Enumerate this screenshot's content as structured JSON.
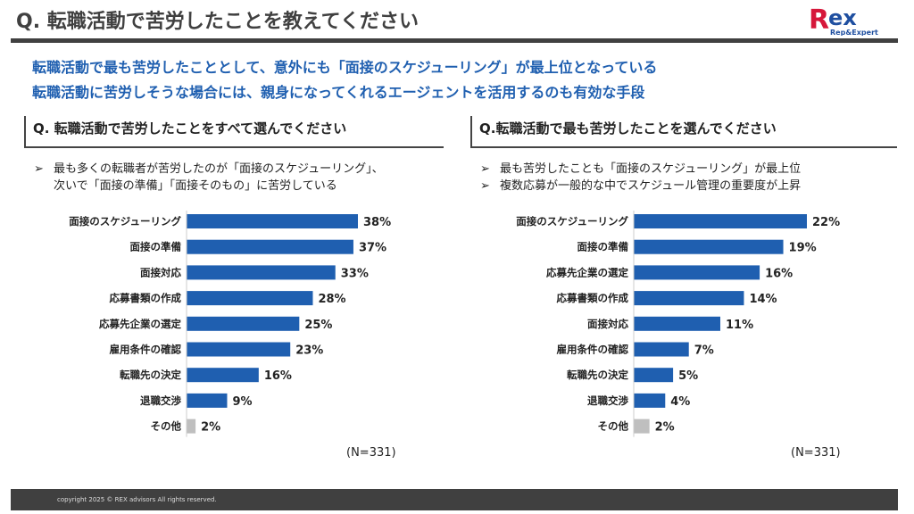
{
  "header": {
    "title": "Q. 転職活動で苦労したことを教えてください",
    "logo_text": "Rex",
    "logo_sub": "Rep&Expert"
  },
  "subtitles": [
    "転職活動で最も苦労したこととして、意外にも「面接のスケジューリング」が最上位となっている",
    "転職活動に苦労しそうな場合には、親身になってくれるエージェントを活用するのも有効な手段"
  ],
  "left": {
    "question": "Q. 転職活動で苦労したことをすべて選んでください",
    "bullets": [
      [
        "最も多くの転職者が苦労したのが「面接のスケジューリング」、",
        "次いで「面接の準備」「面接そのもの」に苦労している"
      ]
    ],
    "n": "(N=331)"
  },
  "right": {
    "question": "Q.転職活動で最も苦労したことを選んでください",
    "bullets": [
      [
        "最も苦労したことも「面接のスケジューリング」が最上位"
      ],
      [
        "複数応募が一般的な中でスケジュール管理の重要度が上昇"
      ]
    ],
    "n": "(N=331)"
  },
  "bullet_glyph": "➢",
  "colors": {
    "bar": "#1f5fb0",
    "other": "#bfbfbf"
  },
  "chart_data": [
    {
      "type": "bar",
      "orientation": "horizontal",
      "unit": "%",
      "categories": [
        "面接のスケジューリング",
        "面接の準備",
        "面接対応",
        "応募書類の作成",
        "応募先企業の選定",
        "雇用条件の確認",
        "転職先の決定",
        "退職交渉",
        "その他"
      ],
      "values": [
        38,
        37,
        33,
        28,
        25,
        23,
        16,
        9,
        2
      ],
      "xlim": [
        0,
        38
      ]
    },
    {
      "type": "bar",
      "orientation": "horizontal",
      "unit": "%",
      "categories": [
        "面接のスケジューリング",
        "面接の準備",
        "応募先企業の選定",
        "応募書類の作成",
        "面接対応",
        "雇用条件の確認",
        "転職先の決定",
        "退職交渉",
        "その他"
      ],
      "values": [
        22,
        19,
        16,
        14,
        11,
        7,
        5,
        4,
        2
      ],
      "xlim": [
        0,
        22
      ]
    }
  ],
  "footer": "copyright 2025 © REX advisors All rights reserved."
}
